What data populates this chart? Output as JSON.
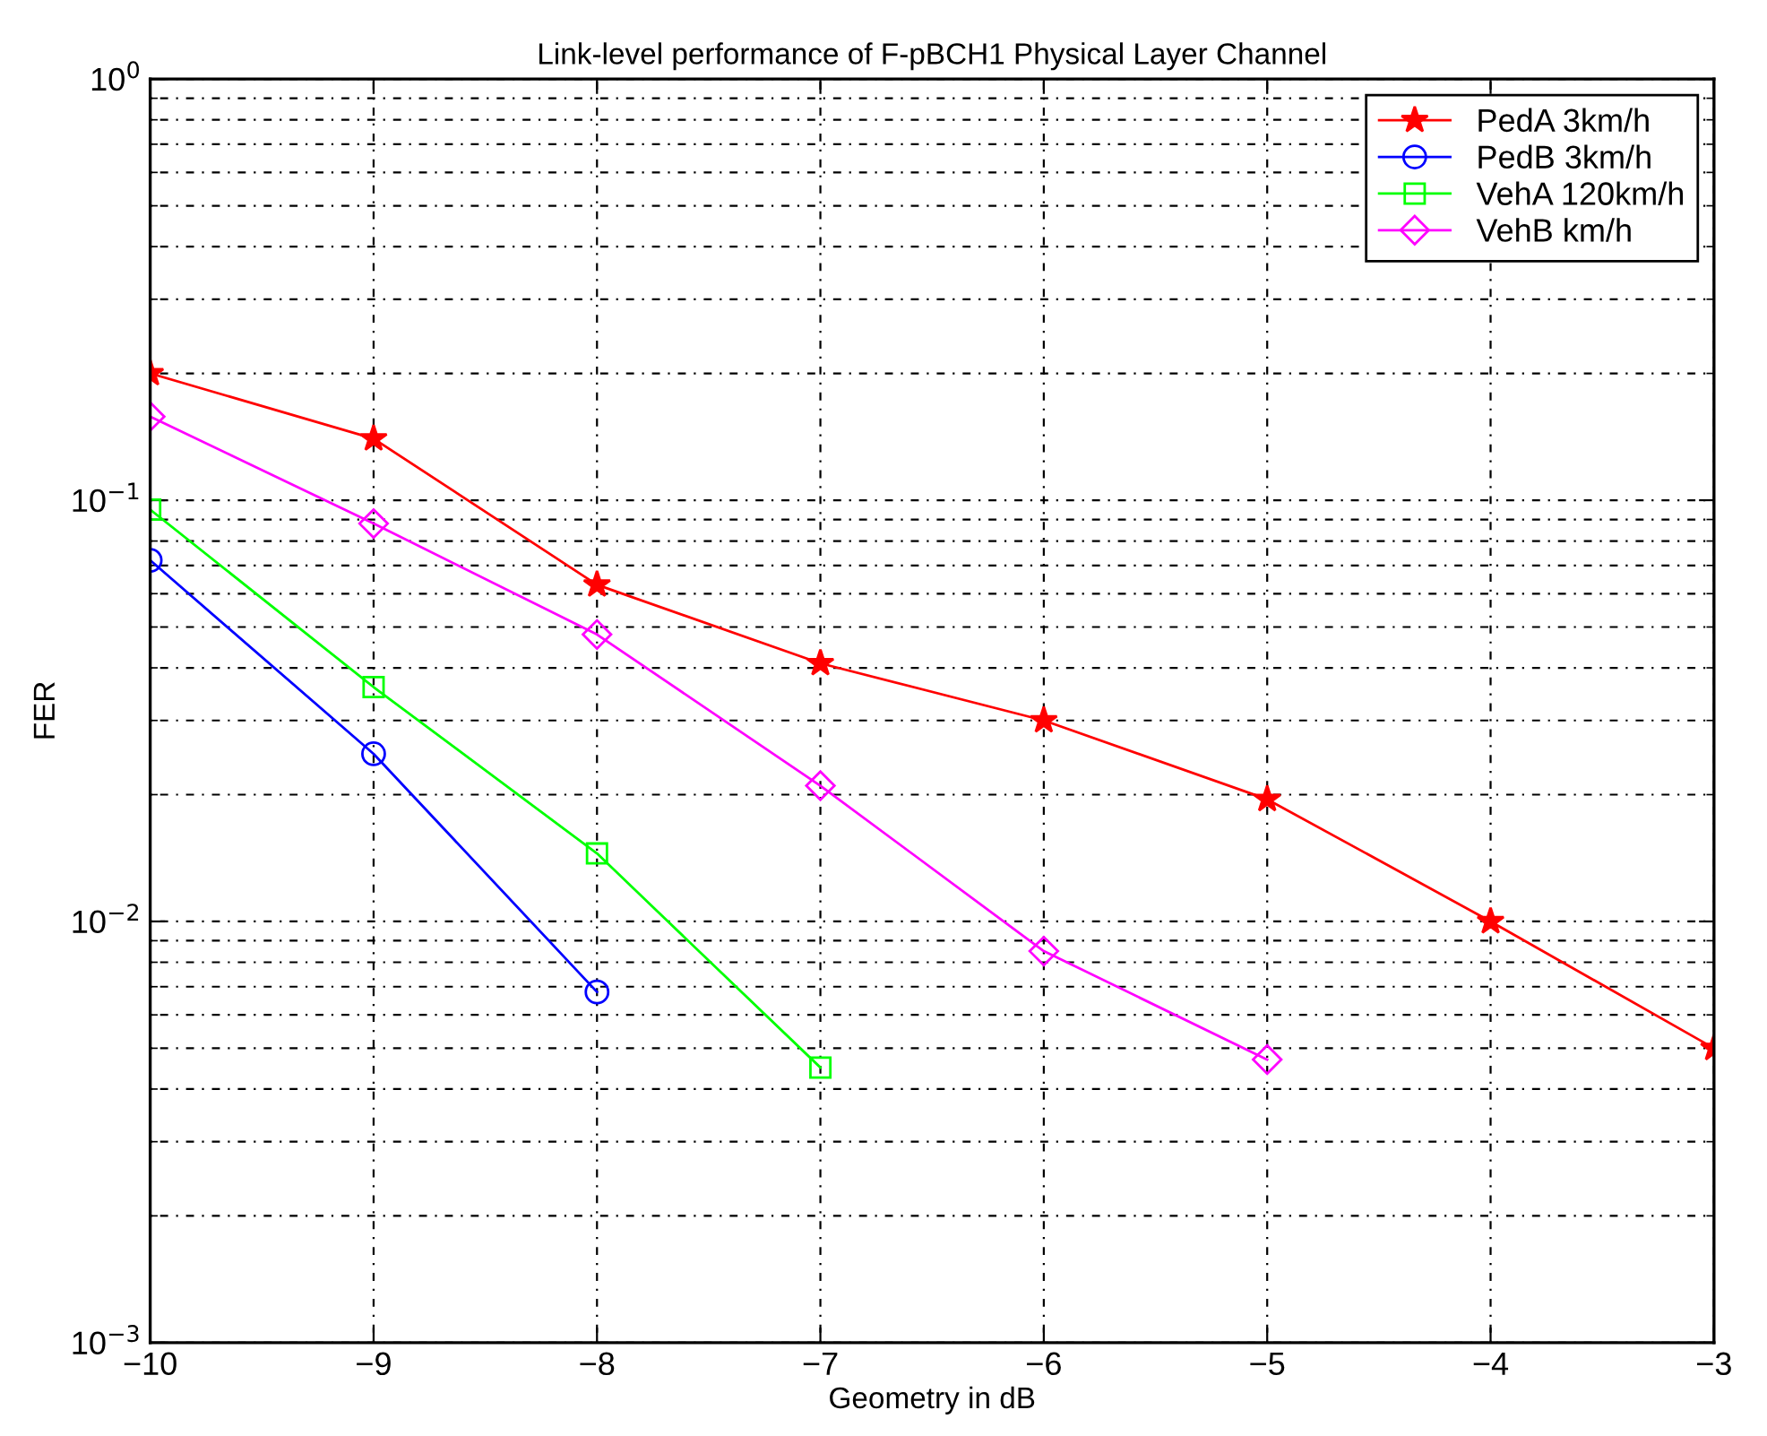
{
  "chart_data": {
    "type": "line",
    "title": "Link-level performance of F-pBCH1 Physical Layer Channel",
    "xlabel": "Geometry in dB",
    "ylabel": "FER",
    "log": "y",
    "grid": true,
    "legend": "top right",
    "line_style": "solid",
    "x": [
      -10,
      -9,
      -8,
      -7,
      -6,
      -5,
      -4,
      -3
    ],
    "xlim": [
      -10,
      -3
    ],
    "xticks": [
      -10,
      -9,
      -8,
      -7,
      -6,
      -5,
      -4,
      -3
    ],
    "ylim": [
      0.001,
      1
    ],
    "yticks": [
      {
        "value": 0.001,
        "label": "10$^{−3}$"
      },
      {
        "value": 0.01,
        "label": "10$^{−2}$"
      },
      {
        "value": 0.1,
        "label": "10$^{−1}$"
      },
      {
        "value": 1,
        "label": "10$^{0}$"
      }
    ],
    "series": [
      {
        "name": "PedA 3km/h",
        "color": "#ff0000",
        "marker": "star",
        "values": [
          0.2,
          0.14,
          0.063,
          0.041,
          0.03,
          0.0195,
          0.01,
          0.005
        ]
      },
      {
        "name": "PedB 3km/h",
        "color": "#0000ff",
        "marker": "circle",
        "values": [
          0.072,
          0.025,
          0.0068,
          null,
          null,
          null,
          null,
          null
        ]
      },
      {
        "name": "VehA 120km/h",
        "color": "#00ff00",
        "marker": "square",
        "values": [
          0.095,
          0.036,
          0.0145,
          0.0045,
          null,
          null,
          null,
          null
        ]
      },
      {
        "name": "VehB km/h",
        "color": "#ff00ff",
        "marker": "diamond",
        "values": [
          0.158,
          0.088,
          0.048,
          0.021,
          0.0085,
          0.0047,
          null,
          null
        ]
      }
    ]
  }
}
